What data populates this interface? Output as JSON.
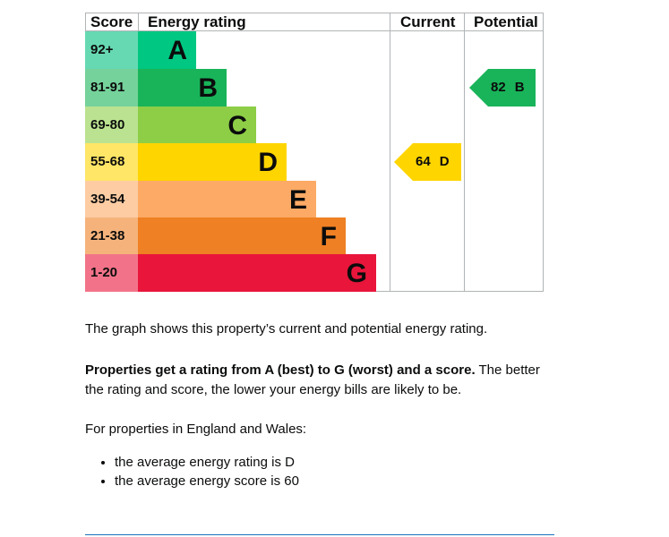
{
  "header": {
    "score": "Score",
    "rating": "Energy rating",
    "current": "Current",
    "potential": "Potential"
  },
  "bands": [
    {
      "score": "92+",
      "letter": "A",
      "color": "#00c781",
      "score_bg": "#66d9b3"
    },
    {
      "score": "81-91",
      "letter": "B",
      "color": "#19b459",
      "score_bg": "#75d29b"
    },
    {
      "score": "69-80",
      "letter": "C",
      "color": "#8dce46",
      "score_bg": "#bbe290"
    },
    {
      "score": "55-68",
      "letter": "D",
      "color": "#ffd500",
      "score_bg": "#ffe666"
    },
    {
      "score": "39-54",
      "letter": "E",
      "color": "#fcaa65",
      "score_bg": "#fdcca3"
    },
    {
      "score": "21-38",
      "letter": "F",
      "color": "#ef8023",
      "score_bg": "#f5b37b"
    },
    {
      "score": "1-20",
      "letter": "G",
      "color": "#e9153b",
      "score_bg": "#f27389"
    }
  ],
  "current": {
    "score": "64",
    "letter": "D",
    "color": "#ffd500"
  },
  "potential": {
    "score": "82",
    "letter": "B",
    "color": "#19b459"
  },
  "text": {
    "para1": "The graph shows this property’s current and potential energy rating.",
    "para2_bold": "Properties get a rating from A (best) to G (worst) and a score.",
    "para2_rest": " The better the rating and score, the lower your energy bills are likely to be.",
    "para3": "For properties in England and Wales:",
    "bullets": [
      "the average energy rating is D",
      "the average energy score is 60"
    ]
  }
}
